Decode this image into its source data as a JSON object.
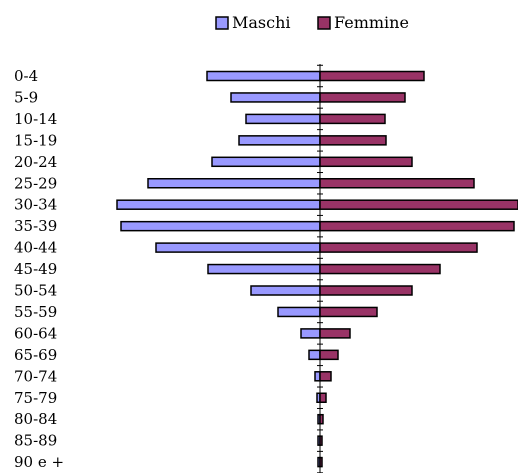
{
  "chart_data": {
    "type": "bar",
    "orientation": "horizontal",
    "layout": "population-pyramid",
    "categories": [
      "0-4",
      "5-9",
      "10-14",
      "15-19",
      "20-24",
      "25-29",
      "30-34",
      "35-39",
      "40-44",
      "45-49",
      "50-54",
      "55-59",
      "60-64",
      "65-69",
      "70-74",
      "75-79",
      "80-84",
      "85-89",
      "90 e +"
    ],
    "series": [
      {
        "name": "Maschi",
        "color": "#9999FF",
        "values": [
          113,
          89,
          74,
          81,
          108,
          172,
          203,
          199,
          164,
          112,
          69,
          42,
          19,
          11,
          5,
          3,
          2,
          1,
          0.5
        ]
      },
      {
        "name": "Femmine",
        "color": "#993366",
        "values": [
          104,
          85,
          65,
          66,
          92,
          154,
          198,
          194,
          157,
          120,
          92,
          57,
          30,
          18,
          11,
          6,
          3,
          2,
          1
        ]
      }
    ],
    "legend": {
      "position": "top",
      "items": [
        "Maschi",
        "Femmine"
      ]
    },
    "grid": false
  }
}
